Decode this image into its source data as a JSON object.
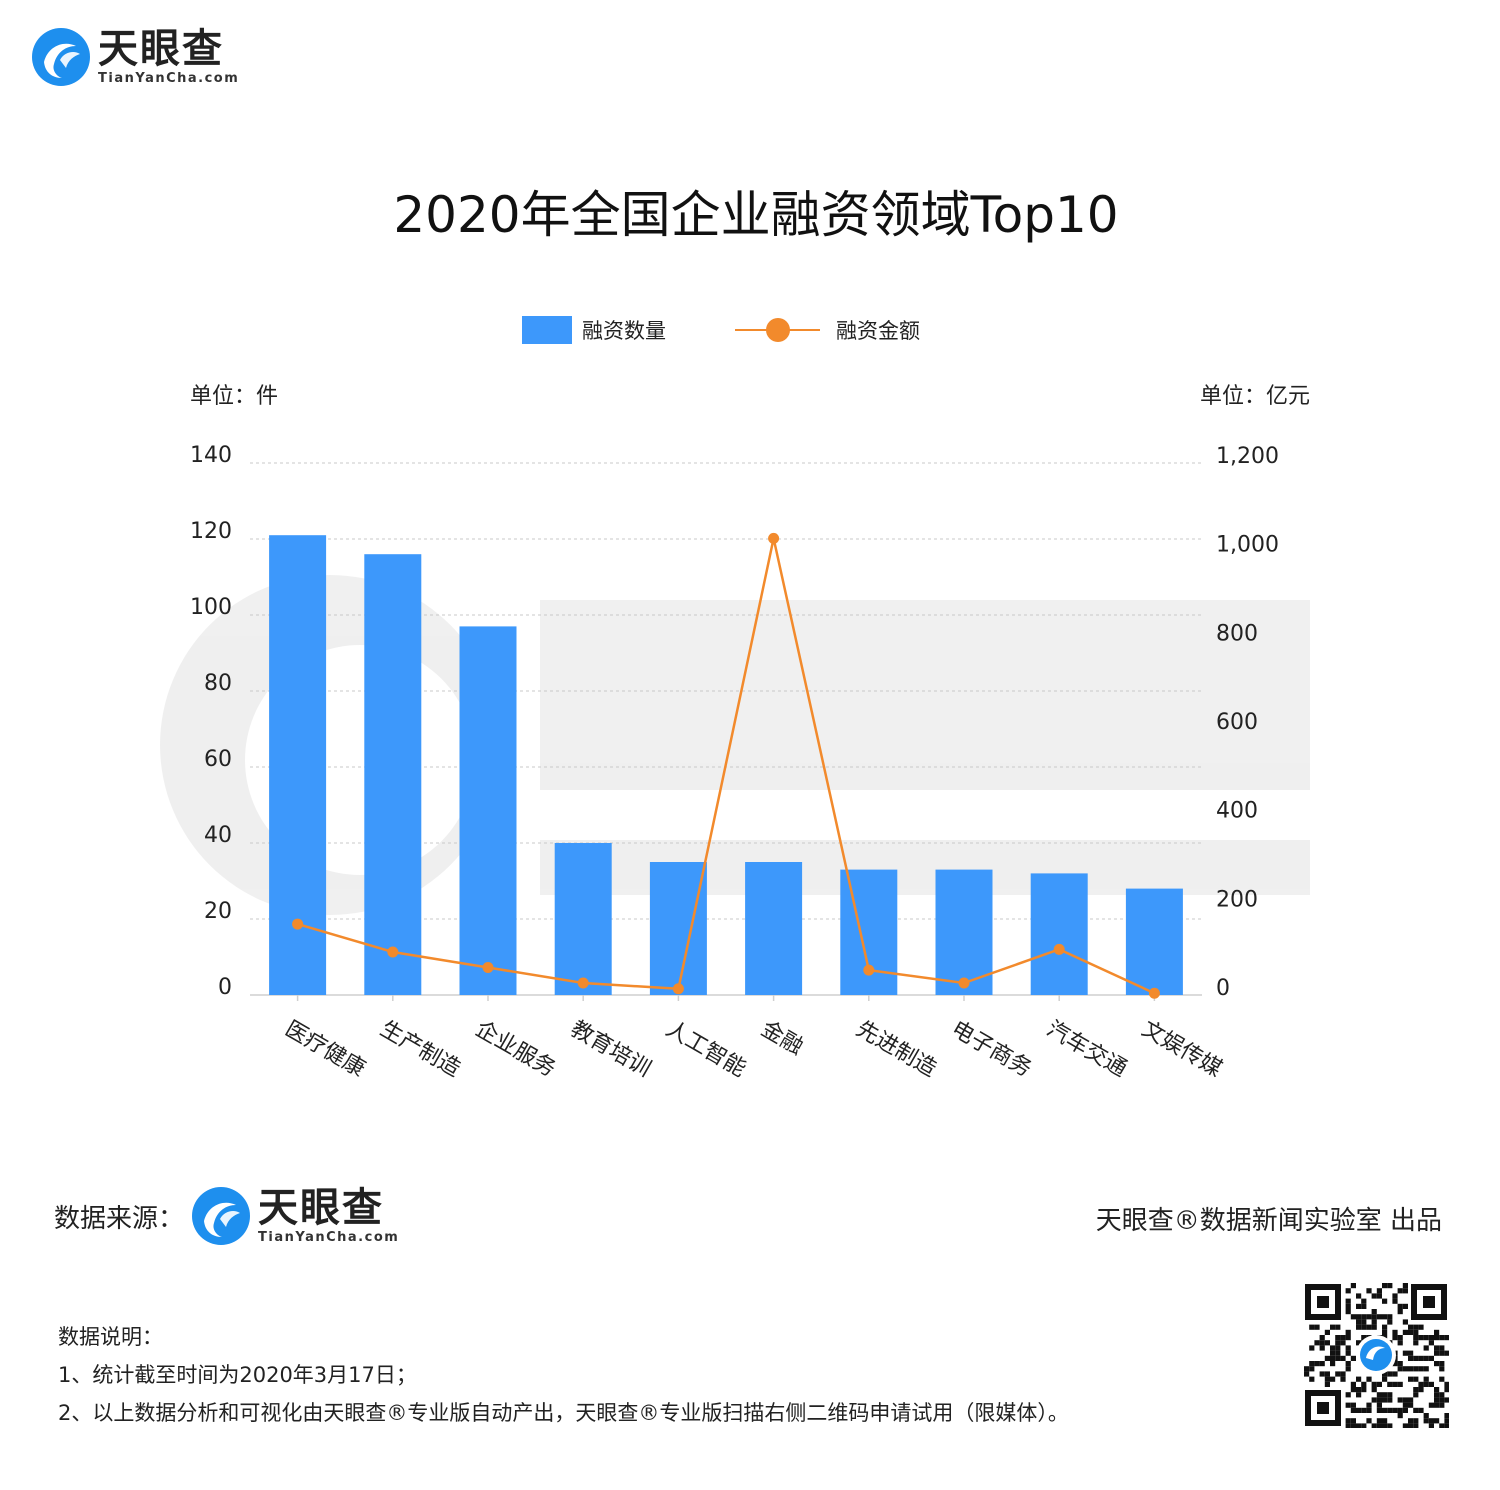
{
  "brand": {
    "name": "天眼查",
    "domain": "TianYanCha.com"
  },
  "title": "2020年全国企业融资领域Top10",
  "legend": {
    "bar": "融资数量",
    "line": "融资金额"
  },
  "left_unit": "单位：件",
  "right_unit": "单位：亿元",
  "colors": {
    "bar": "#3d98fb",
    "line": "#f28a2c",
    "grid": "#c8c8c8",
    "logo_blue": "#1e8fee"
  },
  "chart_data": {
    "type": "bar",
    "categories": [
      "医疗健康",
      "生产制造",
      "企业服务",
      "教育培训",
      "人工智能",
      "金融",
      "先进制造",
      "电子商务",
      "汽车交通",
      "文娱传媒"
    ],
    "series": [
      {
        "name": "融资数量",
        "type": "bar",
        "axis": "left",
        "values": [
          121,
          116,
          97,
          40,
          35,
          35,
          33,
          33,
          32,
          28
        ]
      },
      {
        "name": "融资金额",
        "type": "line",
        "axis": "right",
        "values": [
          160,
          97,
          62,
          27,
          14,
          1030,
          56,
          27,
          103,
          4
        ]
      }
    ],
    "y_left": {
      "label": "单位：件",
      "range": [
        0,
        140
      ],
      "ticks": [
        "0",
        "20",
        "40",
        "60",
        "80",
        "100",
        "120",
        "140"
      ]
    },
    "y_right": {
      "label": "单位：亿元",
      "range": [
        0,
        1200
      ],
      "ticks": [
        "0",
        "200",
        "400",
        "600",
        "800",
        "1,000",
        "1,200"
      ]
    },
    "grid": true,
    "legend_position": "top-center"
  },
  "footer": {
    "source_label": "数据来源：",
    "producer": "天眼查®数据新闻实验室 出品",
    "notes_title": "数据说明：",
    "notes": [
      "1、统计截至时间为2020年3月17日；",
      "2、以上数据分析和可视化由天眼查®专业版自动产出，天眼查®专业版扫描右侧二维码申请试用（限媒体）。"
    ]
  }
}
